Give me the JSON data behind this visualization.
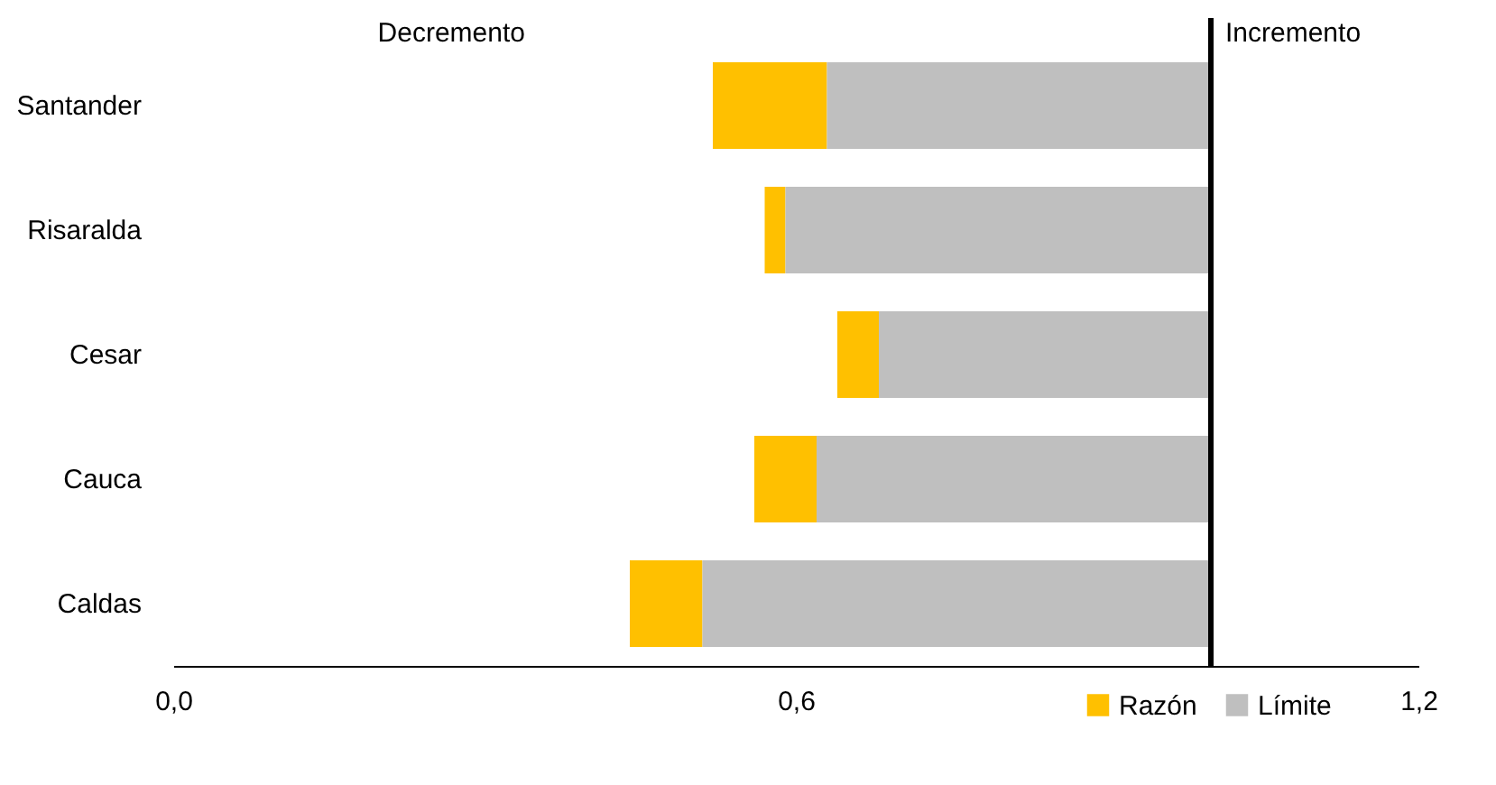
{
  "chart_data": {
    "type": "bar",
    "orientation": "horizontal",
    "categories": [
      "Santander",
      "Risaralda",
      "Cesar",
      "Cauca",
      "Caldas"
    ],
    "series": [
      {
        "name": "Razón",
        "color": "#ffc000",
        "base": [
          0.52,
          0.57,
          0.64,
          0.56,
          0.44
        ],
        "values": [
          0.11,
          0.02,
          0.04,
          0.06,
          0.07
        ]
      },
      {
        "name": "Límite",
        "color": "#bfbfbf",
        "base": [
          0.63,
          0.59,
          0.68,
          0.62,
          0.51
        ],
        "values": [
          0.37,
          0.41,
          0.32,
          0.38,
          0.49
        ]
      }
    ],
    "xlim": [
      0,
      1.2
    ],
    "xticks": [
      {
        "value": 0,
        "label": "0,0"
      },
      {
        "value": 0.6,
        "label": "0,6"
      },
      {
        "value": 1.2,
        "label": "1,2"
      }
    ],
    "ref_lines": [
      {
        "axis": "x",
        "value": 1.0,
        "color": "#000000"
      }
    ],
    "annotations": [
      "Decremento",
      "Incremento"
    ],
    "legend": "bottom right",
    "grid": false
  }
}
